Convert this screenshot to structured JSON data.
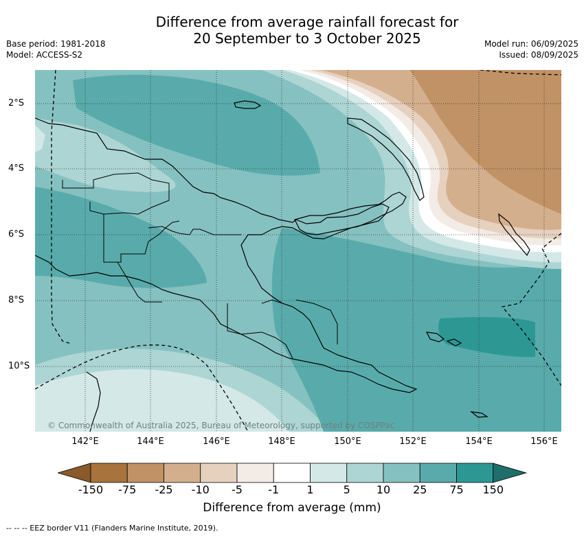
{
  "title_line1": "Difference from average rainfall forecast for",
  "title_line2": "20 September to 3 October 2025",
  "meta_left": {
    "base_period": "Base period: 1981-2018",
    "model": "Model: ACCESS-S2"
  },
  "meta_right": {
    "model_run": "Model run: 06/09/2025",
    "issued": "Issued: 08/09/2025"
  },
  "lat_labels": [
    "2°S",
    "4°S",
    "6°S",
    "8°S",
    "10°S"
  ],
  "lon_labels": [
    "142°E",
    "144°E",
    "146°E",
    "148°E",
    "150°E",
    "152°E",
    "154°E",
    "156°E"
  ],
  "copyright": "© Commonwealth of Australia 2025, Bureau of Meteorology, supported by COSPPac",
  "colorbar": {
    "labels": [
      "-150",
      "-75",
      "-25",
      "-10",
      "-5",
      "-1",
      "1",
      "5",
      "10",
      "25",
      "75",
      "150"
    ],
    "colors": [
      "#8a5a2a",
      "#a8733c",
      "#c09265",
      "#d4af8d",
      "#e6d1bf",
      "#f3ebe5",
      "#ffffff",
      "#d3e8e7",
      "#acd5d4",
      "#85c1c0",
      "#59abab",
      "#2d9794",
      "#1e6e6b"
    ],
    "title": "Difference from average (mm)"
  },
  "footnote": "-- -- -- EEZ border V11 (Flanders Marine Institute, 2019)."
}
